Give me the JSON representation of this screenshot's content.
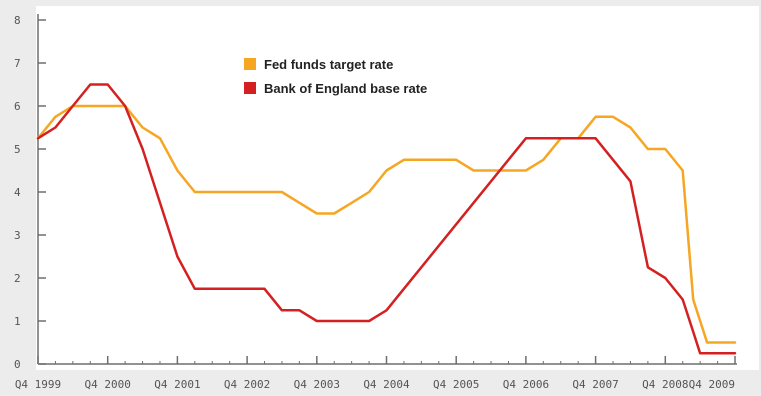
{
  "chart_data": {
    "type": "line",
    "title": "",
    "xlabel": "",
    "ylabel": "",
    "ylim": [
      0,
      8
    ],
    "xlim": [
      1999.75,
      2009.75
    ],
    "yticks": [
      0,
      1,
      2,
      3,
      4,
      5,
      6,
      7,
      8
    ],
    "ytick_labels": [
      "0",
      "1",
      "2",
      "3",
      "4",
      "5",
      "6",
      "7",
      "8"
    ],
    "xticks": [
      1999.75,
      2000.75,
      2001.75,
      2002.75,
      2003.75,
      2004.75,
      2005.75,
      2006.75,
      2007.75,
      2008.75,
      2009.75
    ],
    "xtick_labels": [
      "Q4 1999",
      "Q4 2000",
      "Q4 2001",
      "Q4 2002",
      "Q4 2003",
      "Q4 2004",
      "Q4 2005",
      "Q4 2006",
      "Q4 2007",
      "Q4 2008",
      "Q4 2009"
    ],
    "grid": false,
    "legend_position": "top-center",
    "series": [
      {
        "name": "Fed funds target rate",
        "color": "#f5a623",
        "points": [
          [
            1999.75,
            5.25
          ],
          [
            2000.0,
            5.75
          ],
          [
            2000.25,
            6.0
          ],
          [
            2000.5,
            6.0
          ],
          [
            2000.75,
            6.0
          ],
          [
            2001.0,
            6.0
          ],
          [
            2001.25,
            5.5
          ],
          [
            2001.5,
            5.25
          ],
          [
            2001.75,
            4.5
          ],
          [
            2002.0,
            4.0
          ],
          [
            2002.5,
            4.0
          ],
          [
            2003.0,
            4.0
          ],
          [
            2003.25,
            4.0
          ],
          [
            2003.5,
            3.75
          ],
          [
            2003.75,
            3.5
          ],
          [
            2004.0,
            3.5
          ],
          [
            2004.25,
            3.75
          ],
          [
            2004.5,
            4.0
          ],
          [
            2004.75,
            4.5
          ],
          [
            2005.0,
            4.75
          ],
          [
            2005.5,
            4.75
          ],
          [
            2005.75,
            4.75
          ],
          [
            2006.0,
            4.5
          ],
          [
            2006.5,
            4.5
          ],
          [
            2006.75,
            4.5
          ],
          [
            2007.0,
            4.75
          ],
          [
            2007.25,
            5.25
          ],
          [
            2007.5,
            5.25
          ],
          [
            2007.75,
            5.75
          ],
          [
            2008.0,
            5.75
          ],
          [
            2008.25,
            5.5
          ],
          [
            2008.5,
            5.0
          ],
          [
            2008.75,
            5.0
          ],
          [
            2009.0,
            4.5
          ],
          [
            2009.15,
            1.5
          ],
          [
            2009.35,
            0.5
          ],
          [
            2009.75,
            0.5
          ]
        ]
      },
      {
        "name": "Bank of England base rate",
        "color": "#d42020",
        "points": [
          [
            1999.75,
            5.25
          ],
          [
            2000.0,
            5.5
          ],
          [
            2000.25,
            6.0
          ],
          [
            2000.5,
            6.5
          ],
          [
            2000.75,
            6.5
          ],
          [
            2001.0,
            6.0
          ],
          [
            2001.25,
            5.0
          ],
          [
            2001.5,
            3.75
          ],
          [
            2001.75,
            2.5
          ],
          [
            2002.0,
            1.75
          ],
          [
            2002.5,
            1.75
          ],
          [
            2003.0,
            1.75
          ],
          [
            2003.25,
            1.25
          ],
          [
            2003.5,
            1.25
          ],
          [
            2003.75,
            1.0
          ],
          [
            2004.25,
            1.0
          ],
          [
            2004.5,
            1.0
          ],
          [
            2004.75,
            1.25
          ],
          [
            2005.0,
            1.75
          ],
          [
            2006.75,
            5.25
          ],
          [
            2007.25,
            5.25
          ],
          [
            2007.75,
            5.25
          ],
          [
            2008.0,
            4.75
          ],
          [
            2008.25,
            4.25
          ],
          [
            2008.5,
            2.25
          ],
          [
            2008.75,
            2.0
          ],
          [
            2009.0,
            1.5
          ],
          [
            2009.15,
            0.75
          ],
          [
            2009.25,
            0.25
          ],
          [
            2009.75,
            0.25
          ]
        ]
      }
    ]
  }
}
